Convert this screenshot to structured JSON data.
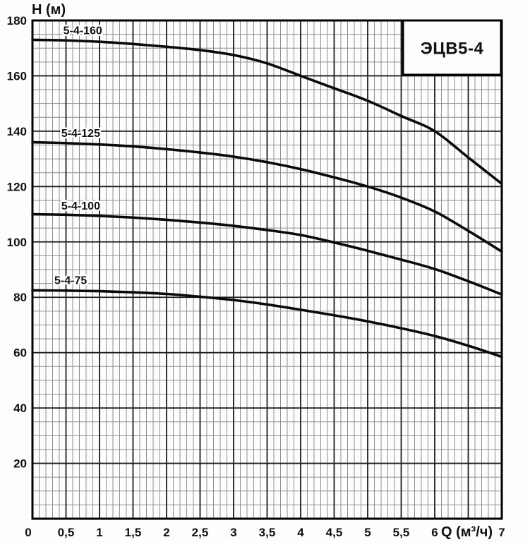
{
  "page": {
    "background": "#fdfdfd"
  },
  "chart_data": {
    "type": "line",
    "model_box_label": "ЭЦВ5-4",
    "xlabel": "Q (м³/ч)",
    "ylabel": "H (м)",
    "xlim": [
      0,
      7
    ],
    "ylim": [
      0,
      180
    ],
    "x_major_step": 0.5,
    "x_minor_step": 0.1,
    "y_major_step": 20,
    "y_minor_step": 5,
    "grid": "on",
    "decimal_separator": ",",
    "x_ticks": [
      {
        "v": 0,
        "label": "0"
      },
      {
        "v": 0.5,
        "label": "0,5"
      },
      {
        "v": 1,
        "label": "1"
      },
      {
        "v": 1.5,
        "label": "1,5"
      },
      {
        "v": 2,
        "label": "2"
      },
      {
        "v": 2.5,
        "label": "2,5"
      },
      {
        "v": 3,
        "label": "3"
      },
      {
        "v": 3.5,
        "label": "3,5"
      },
      {
        "v": 4,
        "label": "4"
      },
      {
        "v": 4.5,
        "label": "4,5"
      },
      {
        "v": 5,
        "label": "5"
      },
      {
        "v": 5.5,
        "label": "5,5"
      },
      {
        "v": 6,
        "label": "6"
      },
      {
        "v": 7,
        "label": "7"
      }
    ],
    "y_ticks": [
      {
        "v": 20,
        "label": "20"
      },
      {
        "v": 40,
        "label": "40"
      },
      {
        "v": 60,
        "label": "60"
      },
      {
        "v": 80,
        "label": "80"
      },
      {
        "v": 100,
        "label": "100"
      },
      {
        "v": 120,
        "label": "120"
      },
      {
        "v": 140,
        "label": "140"
      },
      {
        "v": 160,
        "label": "160"
      },
      {
        "v": 180,
        "label": "180"
      }
    ],
    "x": [
      0,
      0.5,
      1,
      1.5,
      2,
      2.5,
      3,
      3.5,
      4,
      4.5,
      5,
      5.5,
      6,
      6.5,
      7
    ],
    "series": [
      {
        "name": "5-4-160",
        "values": [
          173,
          172.8,
          172.3,
          171.5,
          170.5,
          169.3,
          167.5,
          164.5,
          160,
          155.5,
          151,
          145.5,
          140,
          130.5,
          121
        ],
        "label_q": 0.75,
        "label_h": 176.5
      },
      {
        "name": "5-4-125",
        "values": [
          136,
          135.7,
          135.2,
          134.5,
          133.5,
          132.3,
          130.8,
          128.8,
          126.3,
          123.3,
          120,
          116,
          111,
          104,
          96.5
        ],
        "label_q": 0.72,
        "label_h": 139.5
      },
      {
        "name": "5-4-100",
        "values": [
          110,
          109.8,
          109.4,
          108.8,
          108,
          107,
          105.8,
          104.3,
          102.5,
          99.8,
          96.8,
          93.6,
          90.2,
          85.8,
          81
        ],
        "label_q": 0.72,
        "label_h": 113.2
      },
      {
        "name": "5-4-75",
        "values": [
          82.5,
          82.4,
          82.2,
          81.8,
          81.2,
          80.2,
          79,
          77.4,
          75.5,
          73.5,
          71.3,
          68.8,
          66,
          62.5,
          58.5
        ],
        "label_q": 0.57,
        "label_h": 86.3
      }
    ],
    "colors": {
      "curve": "#0a0a0a",
      "grid_major": "#1c1c1c",
      "grid_minor": "#8f8f8f",
      "border": "#000000",
      "text": "#111111",
      "box_fill": "#fdfdfd"
    }
  }
}
